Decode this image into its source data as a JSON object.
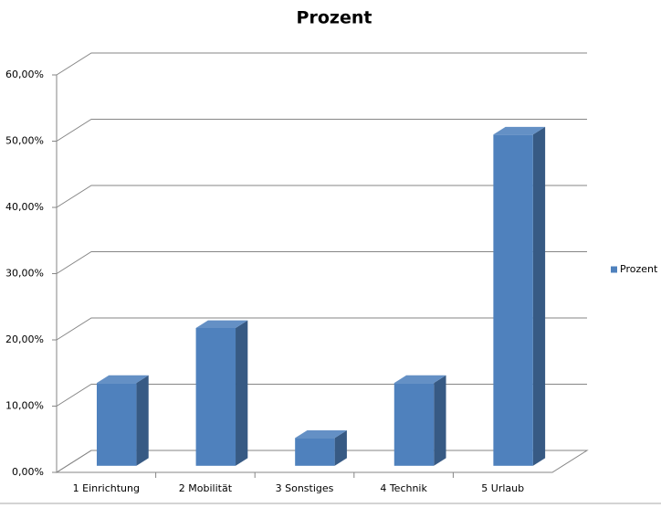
{
  "chart_data": {
    "type": "bar3d",
    "title": "Prozent",
    "categories": [
      "1 Einrichtung",
      "2 Mobilität",
      "3 Sonstiges",
      "4 Technik",
      "5 Urlaub"
    ],
    "series": [
      {
        "name": "Prozent",
        "color": "#4f81bd",
        "values": [
          12.5,
          20.8,
          4.2,
          12.5,
          50
        ]
      }
    ],
    "ylim": [
      0,
      60
    ],
    "yticks": [
      {
        "value": 0,
        "label": "0,00%"
      },
      {
        "value": 10,
        "label": "10,00%"
      },
      {
        "value": 20,
        "label": "20,00%"
      },
      {
        "value": 30,
        "label": "30,00%"
      },
      {
        "value": 40,
        "label": "40,00%"
      },
      {
        "value": 50,
        "label": "50,00%"
      },
      {
        "value": 60,
        "label": "60,00%"
      }
    ],
    "grid": true,
    "legend": "right"
  }
}
